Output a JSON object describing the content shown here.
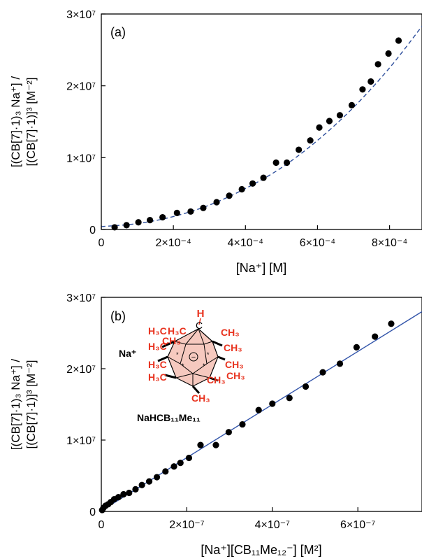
{
  "chart_data": [
    {
      "type": "scatter",
      "panel_label": "(a)",
      "ylabel_line1": "[(CB[7]·1)₃ Na⁺] /",
      "ylabel_line2": "[(CB[7]·1)]³  [M⁻²]",
      "xlabel": "[Na⁺]   [M]",
      "xlim": [
        0,
        0.00089
      ],
      "ylim": [
        0,
        30000000
      ],
      "xticks": [
        0,
        0.0002,
        0.0004,
        0.0006,
        0.0008
      ],
      "xtick_labels": [
        "0",
        "2×10⁻⁴",
        "4×10⁻⁴",
        "6×10⁻⁴",
        "8×10⁻⁴"
      ],
      "yticks": [
        0,
        10000000,
        20000000,
        30000000
      ],
      "ytick_labels": [
        "0",
        "1×10⁷",
        "2×10⁷",
        "3×10⁷"
      ],
      "points": {
        "x": [
          3.7e-05,
          7e-05,
          0.000103,
          0.000135,
          0.00017,
          0.00021,
          0.000248,
          0.000283,
          0.00032,
          0.000355,
          0.00039,
          0.00042,
          0.00045,
          0.000485,
          0.000515,
          0.000548,
          0.00058,
          0.000605,
          0.000633,
          0.000662,
          0.000695,
          0.000725,
          0.000748,
          0.000768,
          0.000797,
          0.000825
        ],
        "y": [
          300000,
          600000,
          1000000,
          1300000,
          1700000,
          2300000,
          2500000,
          3000000,
          3800000,
          4700000,
          5600000,
          6400000,
          7200000,
          9300000,
          9300000,
          11100000,
          12400000,
          14200000,
          15100000,
          15900000,
          17300000,
          19500000,
          20600000,
          23000000,
          24500000,
          26300000
        ]
      },
      "fit": {
        "style": "dashed",
        "color": "#2e4f9c",
        "x": [
          0,
          0.0001,
          0.0002,
          0.0003,
          0.0004,
          0.0005,
          0.0006,
          0.0007,
          0.0008,
          0.00089
        ],
        "y": [
          400000,
          820000,
          1800000,
          3400000,
          5700000,
          8600000,
          12400000,
          17000000,
          22500000,
          28300000
        ]
      }
    },
    {
      "type": "scatter",
      "panel_label": "(b)",
      "ylabel_line1": "[(CB[7]·1)₃ Na⁺] /",
      "ylabel_line2": "[(CB[7]·1)]³  [M⁻²]",
      "xlabel": "[Na⁺][CB₁₁Me₁₂⁻]   [M²]",
      "xlim": [
        0,
        7.5e-07
      ],
      "ylim": [
        0,
        30000000
      ],
      "xticks": [
        0,
        2e-07,
        4e-07,
        6e-07
      ],
      "xtick_labels": [
        "0",
        "2×10⁻⁷",
        "4×10⁻⁷",
        "6×10⁻⁷"
      ],
      "yticks": [
        0,
        10000000,
        20000000,
        30000000
      ],
      "ytick_labels": [
        "0",
        "1×10⁷",
        "2×10⁷",
        "3×10⁷"
      ],
      "points": {
        "x": [
          2e-09,
          5e-09,
          1e-08,
          1.6e-08,
          2.2e-08,
          3e-08,
          4e-08,
          5.2e-08,
          6.5e-08,
          8e-08,
          9.5e-08,
          1.12e-07,
          1.3e-07,
          1.5e-07,
          1.7e-07,
          1.85e-07,
          2.05e-07,
          2.32e-07,
          2.68e-07,
          2.98e-07,
          3.3e-07,
          3.68e-07,
          4e-07,
          4.4e-07,
          4.78e-07,
          5.18e-07,
          5.58e-07,
          5.97e-07,
          6.4e-07,
          6.78e-07
        ],
        "y": [
          200000,
          500000,
          800000,
          1000000,
          1300000,
          1700000,
          2000000,
          2400000,
          2600000,
          3100000,
          3700000,
          4200000,
          4800000,
          5600000,
          6300000,
          6800000,
          7500000,
          9300000,
          9300000,
          11100000,
          12200000,
          14200000,
          15100000,
          15900000,
          17500000,
          19500000,
          20700000,
          23000000,
          24500000,
          26300000
        ]
      },
      "fit": {
        "style": "solid",
        "color": "#3355aa",
        "x": [
          0,
          7.5e-07
        ],
        "y": [
          100000,
          28000000
        ]
      },
      "inset": {
        "na_label": "Na⁺",
        "compound_name": "NaHCB₁₁Me₁₁",
        "h_label": "H",
        "c_label": "C",
        "charge": "−",
        "methyl_labels": [
          "H₃C",
          "H₃C",
          "CH₃",
          "H₃C",
          "CH₃",
          "H₃C",
          "CH₃",
          "H₃C",
          "CH₃",
          "CH₃",
          "CH₃",
          "CH₃"
        ],
        "methyl_color": "#e8321e",
        "cage_fill": "#f6c9bf"
      }
    }
  ]
}
